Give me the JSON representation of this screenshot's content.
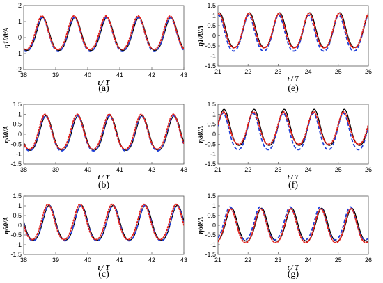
{
  "chart_data": [
    {
      "type": "line",
      "caption": "(a)",
      "ylabel": "η100/A",
      "xlabel": "t / T",
      "xlim": [
        38,
        43
      ],
      "ylim": [
        -2,
        2
      ],
      "xticks": [
        38,
        39,
        40,
        41,
        42,
        43
      ],
      "yticks": [
        -2,
        -1,
        0,
        1,
        2
      ],
      "period": 1.0,
      "series": [
        {
          "style": "solid-black",
          "color": "#000000",
          "phase": 38.6,
          "crest": 1.25,
          "trough": -1.05
        },
        {
          "style": "dashed-blue",
          "color": "#1f3fd8",
          "phase": 38.58,
          "crest": 1.25,
          "trough": -1.12
        },
        {
          "style": "dotted-red",
          "color": "#e0211b",
          "phase": 38.57,
          "crest": 1.35,
          "trough": -1.0
        }
      ]
    },
    {
      "type": "line",
      "caption": "(b)",
      "ylabel": "η80/A",
      "xlabel": "t / T",
      "xlim": [
        38,
        43
      ],
      "ylim": [
        -1.5,
        1.5
      ],
      "xticks": [
        38,
        39,
        40,
        41,
        42,
        43
      ],
      "yticks": [
        -1.5,
        -1,
        -0.5,
        0,
        0.5,
        1,
        1.5
      ],
      "period": 1.0,
      "series": [
        {
          "style": "solid-black",
          "color": "#000000",
          "phase": 38.7,
          "crest": 0.93,
          "trough": -1.02
        },
        {
          "style": "dashed-blue",
          "color": "#1f3fd8",
          "phase": 38.68,
          "crest": 0.92,
          "trough": -1.05
        },
        {
          "style": "dotted-red",
          "color": "#e0211b",
          "phase": 38.67,
          "crest": 1.0,
          "trough": -0.97
        }
      ]
    },
    {
      "type": "line",
      "caption": "(c)",
      "ylabel": "η60/A",
      "xlabel": "t / T",
      "xlim": [
        38,
        43
      ],
      "ylim": [
        -1.5,
        1.5
      ],
      "xticks": [
        38,
        39,
        40,
        41,
        42,
        43
      ],
      "yticks": [
        -1.5,
        -1,
        -0.5,
        0,
        0.5,
        1,
        1.5
      ],
      "period": 1.0,
      "series": [
        {
          "style": "solid-black",
          "color": "#000000",
          "phase": 38.8,
          "crest": 1.03,
          "trough": -0.98
        },
        {
          "style": "dashed-blue",
          "color": "#1f3fd8",
          "phase": 38.79,
          "crest": 1.02,
          "trough": -1.02
        },
        {
          "style": "dotted-red",
          "color": "#e0211b",
          "phase": 38.76,
          "crest": 1.08,
          "trough": -0.95
        }
      ]
    },
    {
      "type": "line",
      "caption": "(e)",
      "ylabel": "η100/A",
      "xlabel": "t / T",
      "xlim": [
        21,
        26
      ],
      "ylim": [
        -1.5,
        1.5
      ],
      "xticks": [
        21,
        22,
        23,
        24,
        25,
        26
      ],
      "yticks": [
        -1.5,
        -1,
        -0.5,
        0,
        0.5,
        1,
        1.5
      ],
      "period": 1.0,
      "series": [
        {
          "style": "solid-black",
          "color": "#000000",
          "phase": 21.05,
          "crest": 1.15,
          "trough": -0.78
        },
        {
          "style": "dashed-blue",
          "color": "#1f3fd8",
          "phase": 21.02,
          "crest": 1.02,
          "trough": -0.97
        },
        {
          "style": "dotted-red",
          "color": "#e0211b",
          "phase": 21.03,
          "crest": 1.12,
          "trough": -0.8
        }
      ]
    },
    {
      "type": "line",
      "caption": "(f)",
      "ylabel": "η80/A",
      "xlabel": "t / T",
      "xlim": [
        21,
        26
      ],
      "ylim": [
        -1.5,
        1.5
      ],
      "xticks": [
        21,
        22,
        23,
        24,
        25,
        26
      ],
      "yticks": [
        -1.5,
        -1,
        -0.5,
        0,
        0.5,
        1,
        1.5
      ],
      "period": 1.0,
      "series": [
        {
          "style": "solid-black",
          "color": "#000000",
          "phase": 21.2,
          "crest": 1.25,
          "trough": -0.78
        },
        {
          "style": "dashed-blue",
          "color": "#1f3fd8",
          "phase": 21.17,
          "crest": 1.05,
          "trough": -1.0
        },
        {
          "style": "dotted-red",
          "color": "#e0211b",
          "phase": 21.18,
          "crest": 1.12,
          "trough": -0.7
        }
      ]
    },
    {
      "type": "line",
      "caption": "(g)",
      "ylabel": "η60/A",
      "xlabel": "t / T",
      "xlim": [
        21,
        26
      ],
      "ylim": [
        -1.5,
        1.5
      ],
      "xticks": [
        21,
        22,
        23,
        24,
        25,
        26
      ],
      "yticks": [
        -1.5,
        -1,
        -0.5,
        0,
        0.5,
        1,
        1.5
      ],
      "period": 1.0,
      "series": [
        {
          "style": "solid-black",
          "color": "#000000",
          "phase": 21.45,
          "crest": 0.88,
          "trough": -1.02
        },
        {
          "style": "dashed-blue",
          "color": "#1f3fd8",
          "phase": 21.4,
          "crest": 0.95,
          "trough": -0.95
        },
        {
          "style": "dotted-red",
          "color": "#e0211b",
          "phase": 21.42,
          "crest": 0.85,
          "trough": -1.1
        }
      ]
    }
  ]
}
